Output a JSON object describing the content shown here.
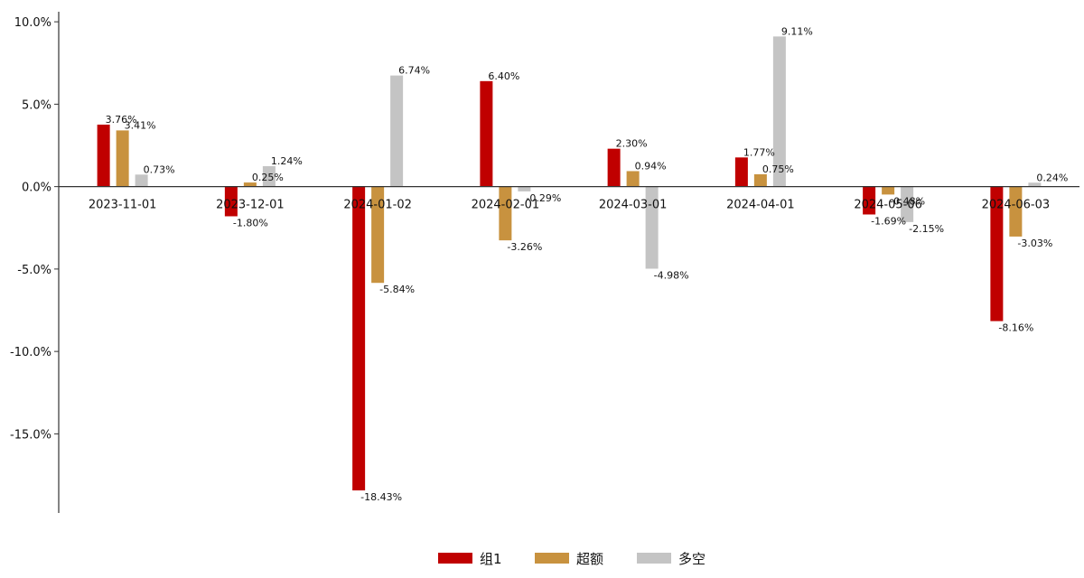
{
  "chart_data": {
    "type": "bar",
    "title": "",
    "xlabel": "",
    "ylabel": "",
    "categories": [
      "2023-11-01",
      "2023-12-01",
      "2024-01-02",
      "2024-02-01",
      "2024-03-01",
      "2024-04-01",
      "2024-05-06",
      "2024-06-03"
    ],
    "series": [
      {
        "name": "组1",
        "color": "#c00000",
        "values": [
          3.76,
          -1.8,
          -18.43,
          6.4,
          2.3,
          1.77,
          -1.69,
          -8.16
        ],
        "labels": [
          "3.76%",
          "-1.80%",
          "-18.43%",
          "6.40%",
          "2.30%",
          "1.77%",
          "-1.69%",
          "-8.16%"
        ]
      },
      {
        "name": "超额",
        "color": "#c8923f",
        "values": [
          3.41,
          0.25,
          -5.84,
          -3.26,
          0.94,
          0.75,
          -0.48,
          -3.03
        ],
        "labels": [
          "3.41%",
          "0.25%",
          "-5.84%",
          "-3.26%",
          "0.94%",
          "0.75%",
          "-0.48%",
          "-3.03%"
        ]
      },
      {
        "name": "多空",
        "color": "#c4c4c4",
        "values": [
          0.73,
          1.24,
          6.74,
          -0.29,
          -4.98,
          9.11,
          -2.15,
          0.24
        ],
        "labels": [
          "0.73%",
          "1.24%",
          "6.74%",
          "-0.29%",
          "-4.98%",
          "9.11%",
          "-2.15%",
          "0.24%"
        ]
      }
    ],
    "ylim": [
      -19.8,
      10.5
    ],
    "yticks": [
      10,
      5,
      0,
      -5,
      -10,
      -15
    ],
    "ytick_labels": [
      "10.0%",
      "5.0%",
      "0.0%",
      "-5.0%",
      "-10.0%",
      "-15.0%"
    ],
    "grid": false,
    "legend_position": "bottom-center"
  }
}
